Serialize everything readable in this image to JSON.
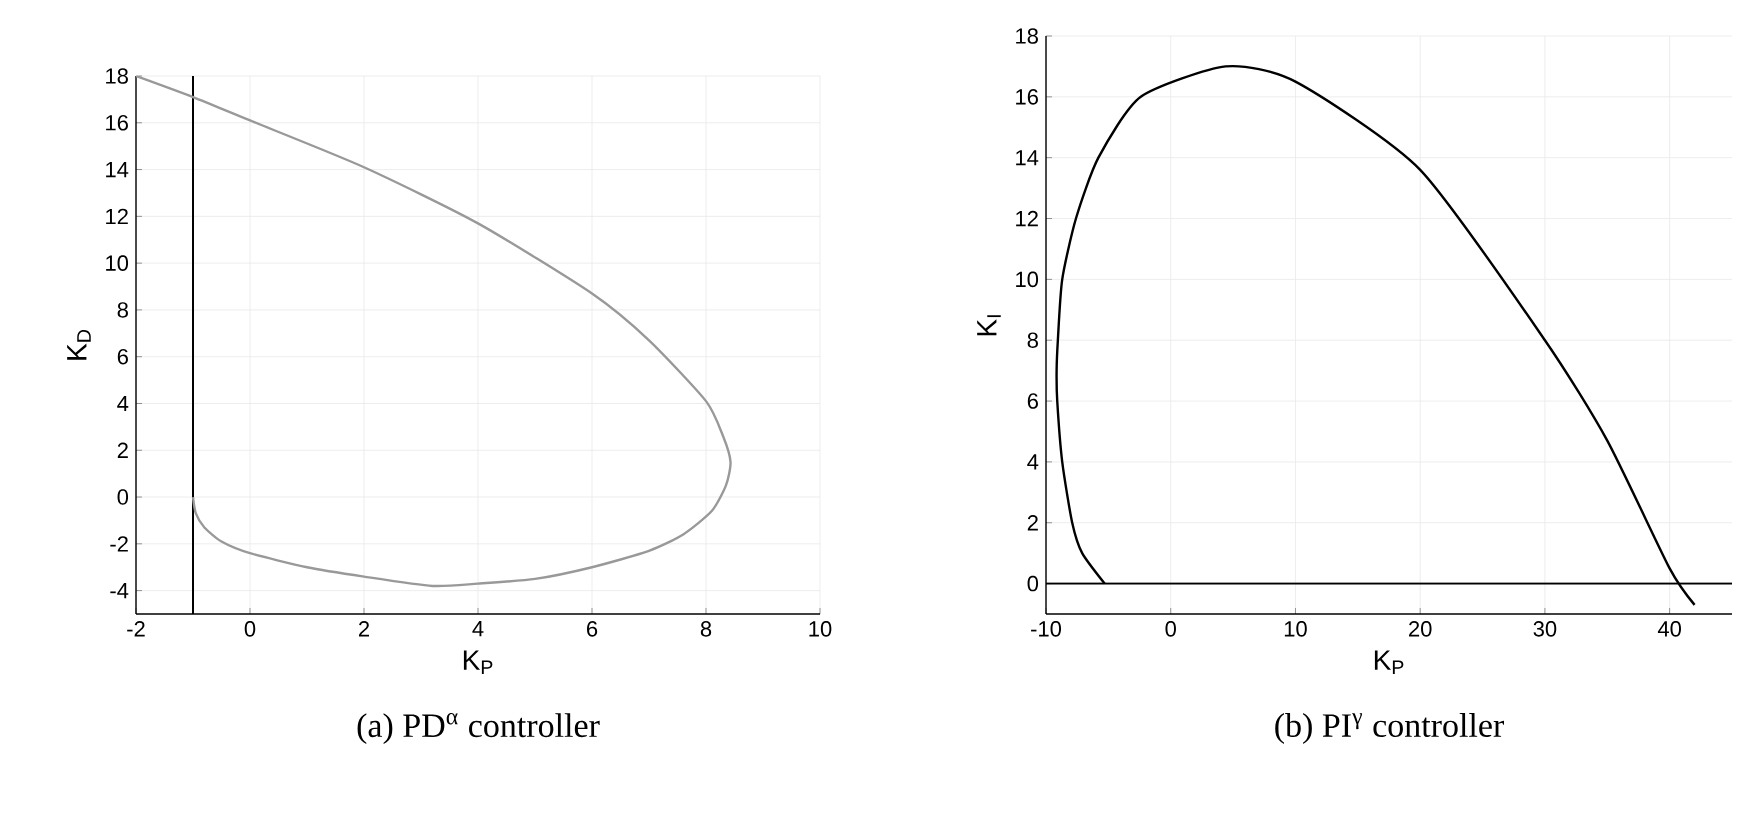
{
  "chart_data": [
    {
      "type": "line",
      "title": "(a) PD$^{α}$ controller",
      "xlabel": "K$_{P}$",
      "ylabel": "K$_{D}$",
      "color": "#999999",
      "grid": true,
      "x": [
        -1,
        -0.95,
        -0.8,
        -0.5,
        0,
        1,
        2,
        3.2,
        4,
        5,
        6,
        7,
        7.6,
        8.1,
        8.35,
        8.43,
        8.3,
        8,
        7,
        6,
        4,
        2,
        0,
        -1,
        -2
      ],
      "values": [
        0,
        -0.7,
        -1.3,
        -1.9,
        -2.4,
        -3.0,
        -3.4,
        -3.8,
        -3.7,
        -3.5,
        -3.0,
        -2.3,
        -1.6,
        -0.6,
        0.5,
        1.5,
        2.6,
        4.1,
        6.7,
        8.7,
        11.7,
        14.1,
        16.1,
        17.1,
        18
      ],
      "xlim": [
        -2,
        10
      ],
      "ylim": [
        -5,
        18
      ],
      "xticks": [
        -2,
        0,
        2,
        4,
        6,
        8,
        10
      ],
      "yticks": [
        -4,
        -2,
        0,
        2,
        4,
        6,
        8,
        10,
        12,
        14,
        16,
        18
      ],
      "ref_lines": [
        {
          "axis": "x",
          "value": -1,
          "color": "#000000"
        }
      ]
    },
    {
      "type": "line",
      "title": "(b) PI$^{γ}$ controller",
      "xlabel": "K$_{P}$",
      "ylabel": "K$_{I}$",
      "color": "#000000",
      "grid": true,
      "x": [
        -5.3,
        -7.1,
        -7.9,
        -8.7,
        -9.1,
        -9.15,
        -9.05,
        -8.7,
        -7.6,
        -5.8,
        -2.4,
        4.4,
        10,
        20,
        30,
        35,
        40,
        42
      ],
      "values": [
        0,
        1,
        2,
        4,
        6,
        7,
        8,
        10,
        12,
        14,
        16,
        17.0,
        16.5,
        13.6,
        8.0,
        4.7,
        0.5,
        -0.7
      ],
      "xlim": [
        -10,
        45
      ],
      "ylim": [
        -1,
        18
      ],
      "xticks": [
        -10,
        0,
        10,
        20,
        30,
        40
      ],
      "yticks": [
        0,
        2,
        4,
        6,
        8,
        10,
        12,
        14,
        16,
        18
      ],
      "ref_lines": [
        {
          "axis": "y",
          "value": 0,
          "color": "#000000"
        }
      ]
    }
  ]
}
